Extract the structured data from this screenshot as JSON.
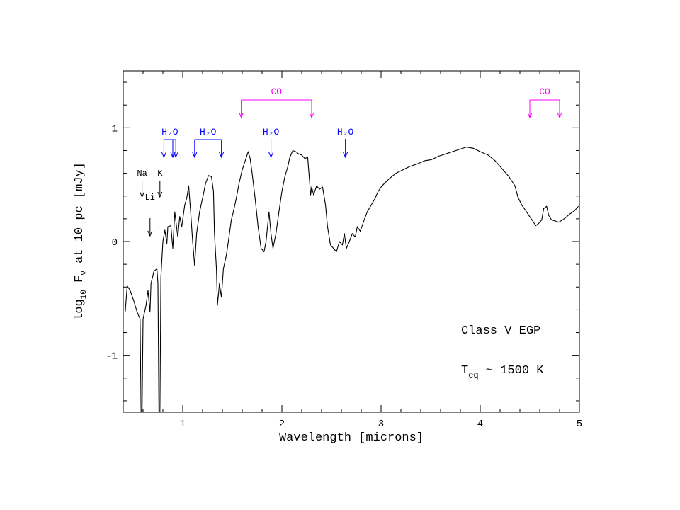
{
  "chart_data": {
    "type": "line",
    "xlabel": "Wavelength  [microns]",
    "ylabel": [
      "log",
      "10",
      " F",
      "ν",
      " at 10 pc [mJy]"
    ],
    "color": "#000000",
    "xlim": [
      0.4,
      5
    ],
    "ylim": [
      -1.5,
      1.5
    ],
    "xticks": [
      1,
      2,
      3,
      4,
      5
    ],
    "yticks": [
      -1,
      0,
      1
    ],
    "xminorticks": [
      0.4,
      0.6,
      0.8,
      1.2,
      1.4,
      1.6,
      1.8,
      2.2,
      2.4,
      2.6,
      2.8,
      3.2,
      3.4,
      3.6,
      3.8,
      4.2,
      4.4,
      4.6,
      4.8
    ],
    "yminorticks": [
      -1.4,
      -1.2,
      -0.8,
      -0.6,
      -0.4,
      -0.2,
      0.2,
      0.4,
      0.6,
      0.8,
      1.2,
      1.4
    ],
    "x": [
      0.42,
      0.44,
      0.47,
      0.51,
      0.54,
      0.57,
      0.58,
      0.59,
      0.6,
      0.63,
      0.65,
      0.67,
      0.68,
      0.71,
      0.74,
      0.75,
      0.76,
      0.77,
      0.78,
      0.8,
      0.82,
      0.84,
      0.85,
      0.88,
      0.9,
      0.92,
      0.95,
      0.97,
      0.99,
      1.02,
      1.04,
      1.06,
      1.08,
      1.1,
      1.12,
      1.14,
      1.17,
      1.2,
      1.23,
      1.26,
      1.29,
      1.31,
      1.32,
      1.34,
      1.35,
      1.37,
      1.39,
      1.41,
      1.44,
      1.46,
      1.49,
      1.51,
      1.54,
      1.57,
      1.6,
      1.63,
      1.66,
      1.68,
      1.7,
      1.73,
      1.76,
      1.79,
      1.82,
      1.84,
      1.87,
      1.89,
      1.91,
      1.94,
      1.97,
      2.0,
      2.03,
      2.06,
      2.08,
      2.11,
      2.14,
      2.17,
      2.2,
      2.23,
      2.26,
      2.27,
      2.29,
      2.3,
      2.32,
      2.35,
      2.38,
      2.41,
      2.44,
      2.46,
      2.49,
      2.52,
      2.55,
      2.58,
      2.61,
      2.63,
      2.65,
      2.68,
      2.71,
      2.74,
      2.76,
      2.79,
      2.83,
      2.86,
      2.9,
      2.94,
      2.97,
      3.01,
      3.08,
      3.15,
      3.22,
      3.29,
      3.36,
      3.44,
      3.51,
      3.58,
      3.65,
      3.72,
      3.79,
      3.86,
      3.93,
      4.0,
      4.08,
      4.15,
      4.22,
      4.29,
      4.35,
      4.38,
      4.42,
      4.46,
      4.49,
      4.53,
      4.56,
      4.59,
      4.62,
      4.64,
      4.67,
      4.69,
      4.72,
      4.76,
      4.79,
      4.83,
      4.86,
      4.9,
      4.95,
      4.99
    ],
    "values": [
      -0.62,
      -0.39,
      -0.43,
      -0.53,
      -0.62,
      -0.68,
      -1.49,
      -1.5,
      -0.68,
      -0.56,
      -0.43,
      -0.62,
      -0.37,
      -0.26,
      -0.24,
      -0.37,
      -1.5,
      -1.5,
      -0.31,
      0.0,
      0.1,
      -0.02,
      0.13,
      0.14,
      -0.06,
      0.26,
      0.04,
      0.22,
      0.13,
      0.32,
      0.38,
      0.49,
      0.26,
      0.0,
      -0.21,
      0.07,
      0.26,
      0.38,
      0.51,
      0.58,
      0.57,
      0.44,
      0.07,
      -0.24,
      -0.56,
      -0.37,
      -0.49,
      -0.24,
      -0.12,
      0.0,
      0.19,
      0.26,
      0.38,
      0.52,
      0.63,
      0.71,
      0.79,
      0.73,
      0.6,
      0.38,
      0.13,
      -0.06,
      -0.09,
      0.0,
      0.26,
      0.07,
      -0.06,
      0.07,
      0.26,
      0.44,
      0.57,
      0.66,
      0.74,
      0.8,
      0.79,
      0.77,
      0.76,
      0.73,
      0.74,
      0.63,
      0.41,
      0.48,
      0.41,
      0.49,
      0.46,
      0.48,
      0.32,
      0.13,
      -0.03,
      -0.06,
      -0.09,
      0.0,
      -0.03,
      0.07,
      -0.06,
      0.0,
      0.07,
      0.04,
      0.13,
      0.09,
      0.19,
      0.26,
      0.32,
      0.38,
      0.44,
      0.49,
      0.55,
      0.6,
      0.63,
      0.66,
      0.68,
      0.71,
      0.72,
      0.75,
      0.77,
      0.79,
      0.81,
      0.83,
      0.82,
      0.79,
      0.76,
      0.71,
      0.64,
      0.57,
      0.49,
      0.39,
      0.32,
      0.27,
      0.23,
      0.18,
      0.14,
      0.16,
      0.19,
      0.29,
      0.31,
      0.23,
      0.19,
      0.18,
      0.17,
      0.19,
      0.21,
      0.24,
      0.27,
      0.31
    ],
    "arrow_labels": [
      {
        "text": "Na",
        "x": 0.59
      },
      {
        "text": "K",
        "x": 0.77
      },
      {
        "text": "Li",
        "x": 0.67
      }
    ],
    "bands": [
      {
        "text": "H₂O",
        "x": [
          0.81,
          0.9,
          0.93
        ],
        "color": "#0000ff"
      },
      {
        "text": "H₂O",
        "x": [
          1.12,
          1.39
        ],
        "color": "#0000ff"
      },
      {
        "text": "H₂O",
        "x": [
          1.89
        ],
        "color": "#0000ff"
      },
      {
        "text": "H₂O",
        "x": [
          2.64
        ],
        "color": "#0000ff"
      },
      {
        "text": "CO",
        "x": [
          1.59,
          2.3
        ],
        "color": "#ff00ff"
      },
      {
        "text": "CO",
        "x": [
          4.5,
          4.8
        ],
        "color": "#ff00ff"
      }
    ],
    "notes": [
      [
        "Class V EGP"
      ],
      [
        "T",
        "eq",
        " ~ 1500 K"
      ]
    ]
  }
}
